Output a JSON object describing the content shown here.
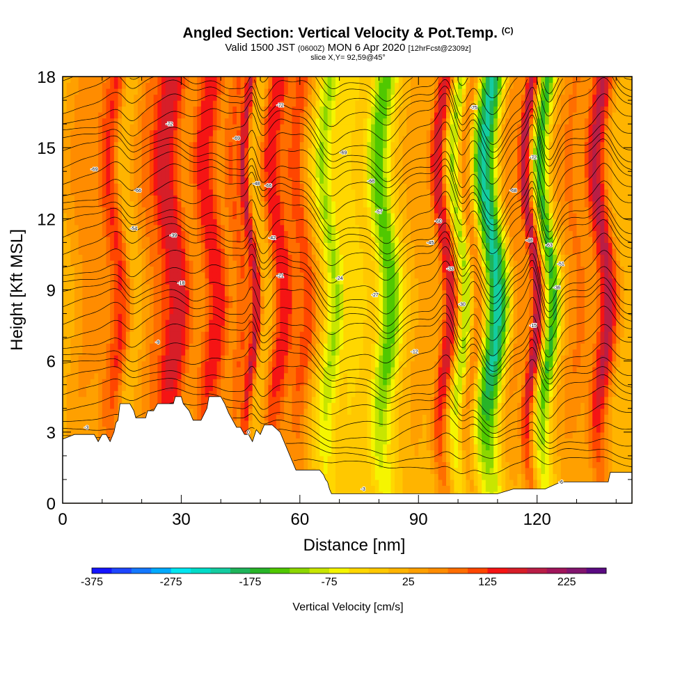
{
  "header": {
    "title": "Angled Section: Vertical Velocity & Pot.Temp.",
    "title_unit": "(C)",
    "valid_main": "Valid 1500 JST",
    "valid_utc": "(0600Z)",
    "valid_date": "MON 6 Apr 2020",
    "valid_fcst": "[12hrFcst@2309z]",
    "slice": "slice X,Y= 92,59@45°"
  },
  "chart_data": {
    "type": "heatmap",
    "xlabel": "Distance [nm]",
    "ylabel": "Height [Kft MSL]",
    "xlim": [
      0,
      144
    ],
    "ylim": [
      0,
      18
    ],
    "x_ticks": [
      0,
      30,
      60,
      90,
      120
    ],
    "y_ticks": [
      0,
      3,
      6,
      9,
      12,
      15,
      18
    ],
    "colorbar": {
      "label": "Vertical Velocity [cm/s]",
      "min": -375,
      "max": 275,
      "step": 25,
      "tick_labels": [
        -375,
        -275,
        -175,
        -75,
        25,
        125,
        225
      ],
      "colors": [
        "#1414ff",
        "#1e46ff",
        "#1478ff",
        "#00aaff",
        "#00e6f0",
        "#00dcc8",
        "#14cca0",
        "#1eb45a",
        "#28b428",
        "#50c800",
        "#8cd700",
        "#c8e600",
        "#f5f500",
        "#ffd700",
        "#ffc800",
        "#ffb400",
        "#ffa000",
        "#ff8c00",
        "#ff6e00",
        "#ff4600",
        "#f51414",
        "#d71e28",
        "#b91e46",
        "#a0145a",
        "#82146e",
        "#5a0a82"
      ]
    },
    "velocity_features": [
      {
        "x": 6,
        "w": 4,
        "v": 50
      },
      {
        "x": 14,
        "w": 3.5,
        "v": 120
      },
      {
        "x": 17,
        "w": 1.8,
        "v": -55
      },
      {
        "x": 22,
        "w": 2.5,
        "v": 50
      },
      {
        "x": 28,
        "w": 4,
        "v": 165
      },
      {
        "x": 38,
        "w": 3.5,
        "v": 140
      },
      {
        "x": 45,
        "w": 2.5,
        "v": 90
      },
      {
        "x": 48,
        "w": 1.2,
        "v": 150
      },
      {
        "x": 51,
        "w": 1.5,
        "v": -25
      },
      {
        "x": 55,
        "w": 3,
        "v": 140
      },
      {
        "x": 61,
        "w": 2.5,
        "v": 105
      },
      {
        "x": 68,
        "w": 2.5,
        "v": -110
      },
      {
        "x": 74,
        "w": 3,
        "v": -40
      },
      {
        "x": 82,
        "w": 3,
        "v": -150
      },
      {
        "x": 91,
        "w": 3,
        "v": 35
      },
      {
        "x": 97,
        "w": 2,
        "v": 165
      },
      {
        "x": 101,
        "w": 1.8,
        "v": -120
      },
      {
        "x": 104,
        "w": 2,
        "v": 90
      },
      {
        "x": 109,
        "w": 3.5,
        "v": -220
      },
      {
        "x": 114,
        "w": 3,
        "v": 70
      },
      {
        "x": 119,
        "w": 1.5,
        "v": 190
      },
      {
        "x": 123,
        "w": 2,
        "v": -170
      },
      {
        "x": 130,
        "w": 4,
        "v": 70
      },
      {
        "x": 137,
        "w": 2.5,
        "v": 175
      }
    ],
    "terrain": [
      [
        0,
        2.7
      ],
      [
        3,
        2.9
      ],
      [
        8,
        2.9
      ],
      [
        9,
        2.6
      ],
      [
        10,
        2.9
      ],
      [
        11,
        2.9
      ],
      [
        12,
        2.6
      ],
      [
        13,
        3.0
      ],
      [
        13.5,
        3.4
      ],
      [
        14,
        3.5
      ],
      [
        14.5,
        4.2
      ],
      [
        17,
        4.2
      ],
      [
        18,
        3.9
      ],
      [
        18.5,
        3.6
      ],
      [
        21,
        3.6
      ],
      [
        21.5,
        3.9
      ],
      [
        23,
        3.9
      ],
      [
        24,
        4.2
      ],
      [
        28,
        4.2
      ],
      [
        28.5,
        4.5
      ],
      [
        30,
        4.5
      ],
      [
        30.5,
        4.2
      ],
      [
        32,
        3.9
      ],
      [
        33,
        3.5
      ],
      [
        35,
        3.5
      ],
      [
        36.5,
        4.0
      ],
      [
        37,
        4.5
      ],
      [
        40,
        4.5
      ],
      [
        41,
        4.2
      ],
      [
        42,
        3.8
      ],
      [
        43,
        3.5
      ],
      [
        44,
        3.2
      ],
      [
        45,
        3.2
      ],
      [
        46,
        2.9
      ],
      [
        47,
        2.9
      ],
      [
        48,
        2.6
      ],
      [
        49,
        3.1
      ],
      [
        50,
        2.9
      ],
      [
        51,
        3.3
      ],
      [
        53,
        3.3
      ],
      [
        55,
        3.0
      ],
      [
        57,
        2.2
      ],
      [
        58,
        1.8
      ],
      [
        59,
        1.4
      ],
      [
        65,
        1.4
      ],
      [
        66,
        1.2
      ],
      [
        66.5,
        1.0
      ],
      [
        67,
        0.9
      ],
      [
        67.5,
        0.6
      ],
      [
        68,
        0.4
      ],
      [
        110,
        0.4
      ],
      [
        114,
        0.6
      ],
      [
        122,
        0.6
      ],
      [
        126,
        0.9
      ],
      [
        138,
        0.9
      ],
      [
        138.5,
        1.3
      ],
      [
        144,
        1.3
      ]
    ],
    "theta_contours": [
      {
        "label": "-3",
        "label_at": [
          6,
          3.2
        ]
      },
      {
        "label": "0",
        "label_at": [
          47,
          3.0
        ]
      },
      {
        "label": "-3",
        "label_at": [
          76,
          0.6
        ]
      },
      {
        "label": "-6",
        "label_at": [
          126,
          0.9
        ]
      },
      {
        "label": "-9",
        "label_at": [
          24,
          6.8
        ]
      },
      {
        "label": "-12",
        "label_at": [
          89,
          6.4
        ]
      },
      {
        "label": "-15",
        "label_at": [
          119,
          7.5
        ]
      },
      {
        "label": "-18",
        "label_at": [
          30,
          9.3
        ]
      },
      {
        "label": "-21",
        "label_at": [
          55,
          9.6
        ]
      },
      {
        "label": "-24",
        "label_at": [
          70,
          9.5
        ]
      },
      {
        "label": "-27",
        "label_at": [
          79,
          8.8
        ]
      },
      {
        "label": "-30",
        "label_at": [
          101,
          8.4
        ]
      },
      {
        "label": "-33",
        "label_at": [
          98,
          9.9
        ]
      },
      {
        "label": "-36",
        "label_at": [
          125,
          9.1
        ]
      },
      {
        "label": "-39",
        "label_at": [
          28,
          11.3
        ]
      },
      {
        "label": "-42",
        "label_at": [
          53,
          11.2
        ]
      },
      {
        "label": "-45",
        "label_at": [
          93,
          11.0
        ]
      },
      {
        "label": "-48",
        "label_at": [
          118,
          11.1
        ]
      },
      {
        "label": "-51",
        "label_at": [
          126,
          10.1
        ]
      },
      {
        "label": "-54",
        "label_at": [
          18,
          11.6
        ]
      },
      {
        "label": "-57",
        "label_at": [
          80,
          12.3
        ]
      },
      {
        "label": "-60",
        "label_at": [
          95,
          11.9
        ]
      },
      {
        "label": "-63",
        "label_at": [
          123,
          10.9
        ]
      },
      {
        "label": "-66",
        "label_at": [
          19,
          13.2
        ]
      },
      {
        "label": "-66",
        "label_at": [
          52,
          13.4
        ]
      },
      {
        "label": "-68",
        "label_at": [
          78,
          13.6
        ]
      },
      {
        "label": "-68",
        "label_at": [
          114,
          13.2
        ]
      },
      {
        "label": "-69",
        "label_at": [
          8,
          14.1
        ]
      },
      {
        "label": "-69",
        "label_at": [
          44,
          15.4
        ]
      },
      {
        "label": "-69",
        "label_at": [
          71,
          14.8
        ]
      },
      {
        "label": "-72",
        "label_at": [
          119,
          14.6
        ]
      },
      {
        "label": "-72",
        "label_at": [
          27,
          16.0
        ]
      },
      {
        "label": "-72",
        "label_at": [
          55,
          16.8
        ]
      },
      {
        "label": "-75",
        "label_at": [
          104,
          16.7
        ]
      },
      {
        "label": "-48",
        "label_at": [
          49,
          13.5
        ]
      }
    ]
  }
}
